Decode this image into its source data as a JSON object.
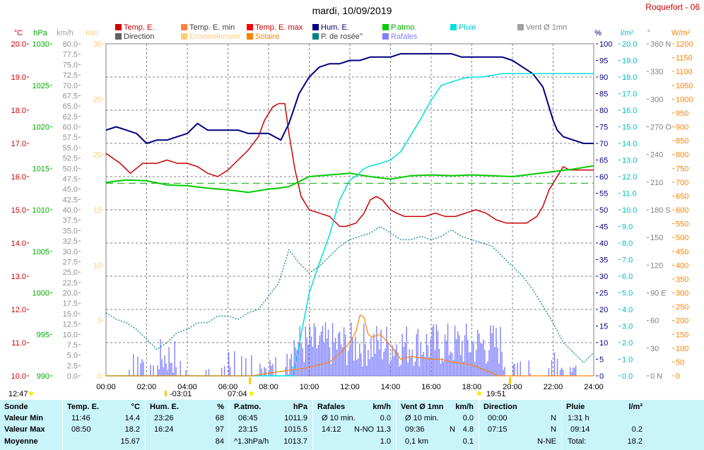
{
  "title": "mardi, 10/09/2019",
  "station": "Roquefort - 06",
  "colors": {
    "temp": "#cc0000",
    "temp_min": "#ff8040",
    "temp_max": "#ff0000",
    "hum": "#000080",
    "patmo": "#00cc00",
    "pluie": "#00cccc",
    "vent": "#a0a0a0",
    "direction": "#606060",
    "ensoleillement": "#ffcc80",
    "solaire": "#ff8000",
    "rosee": "#008080",
    "rafales": "#8080ff",
    "bg_stats": "#c8f4fa"
  },
  "legend": [
    {
      "label": "Temp. E.",
      "color": "#cc0000"
    },
    {
      "label": "Temp. E. min",
      "color": "#ff8040"
    },
    {
      "label": "Temp. E. max",
      "color": "#ff0000"
    },
    {
      "label": "Hum. E.",
      "color": "#000080"
    },
    {
      "label": "P.atmo.",
      "color": "#00cc00"
    },
    {
      "label": "Pluie",
      "color": "#00e0e0"
    },
    {
      "label": "Vent Ø 1mn",
      "color": "#a0a0a0"
    },
    {
      "label": "Direction",
      "color": "#606060"
    },
    {
      "label": "Ensoleillement",
      "color": "#ffcc80"
    },
    {
      "label": "Solaire",
      "color": "#ff8000"
    },
    {
      "label": "P. de rosée°",
      "color": "#008080"
    },
    {
      "label": "Rafales",
      "color": "#8080ff"
    }
  ],
  "axis_units": {
    "temp": "°C",
    "hpa": "hPa",
    "kmh": "km/h",
    "min": "min",
    "pct": "%",
    "lm2": "l/m²",
    "deg": "°",
    "wm2": "W/m²"
  },
  "axes": {
    "temp": [
      "20.0",
      "19.0",
      "18.0",
      "17.0",
      "16.0",
      "15.0",
      "14.0",
      "13.0",
      "12.0",
      "11.0",
      "10.0"
    ],
    "hpa": [
      "1030",
      "1025",
      "1020",
      "1015",
      "1010",
      "1005",
      "1000",
      "995",
      "990"
    ],
    "kmh": [
      "80.0",
      "77.5",
      "75.0",
      "72.5",
      "70.0",
      "67.5",
      "65.0",
      "62.5",
      "60.0",
      "57.5",
      "55.0",
      "52.5",
      "50.0",
      "47.5",
      "45.0",
      "42.5",
      "40.0",
      "37.5",
      "35.0",
      "32.5",
      "30.0",
      "27.5",
      "25.0",
      "22.5",
      "20.0",
      "17.5",
      "15.0",
      "12.5",
      "10.0",
      "7.5",
      "5.0",
      "2.5",
      "0.0"
    ],
    "min": [
      "30",
      "25",
      "20",
      "15",
      "10",
      "5",
      "0"
    ],
    "pct": [
      "100",
      "95",
      "90",
      "85",
      "80",
      "75",
      "70",
      "65",
      "60",
      "55",
      "50",
      "45",
      "40",
      "35",
      "30",
      "25",
      "20",
      "15",
      "10",
      "5",
      "0"
    ],
    "lm2": [
      "20.0",
      "19.0",
      "18.0",
      "17.0",
      "16.0",
      "15.0",
      "14.0",
      "13.0",
      "12.0",
      "11.0",
      "10.0",
      "9.0",
      "8.0",
      "7.0",
      "6.0",
      "5.0",
      "4.0",
      "3.0",
      "2.0",
      "1.0",
      "0.0"
    ],
    "deg": [
      "360 N",
      "330",
      "300",
      "270 O",
      "240",
      "210",
      "180 S",
      "150",
      "120",
      "90  E",
      "60",
      "30",
      "0   N"
    ],
    "wm2": [
      "1200",
      "1150",
      "1100",
      "1050",
      "1000",
      "950",
      "900",
      "850",
      "800",
      "750",
      "700",
      "650",
      "600",
      "550",
      "500",
      "450",
      "400",
      "350",
      "300",
      "250",
      "200",
      "150",
      "100",
      "50",
      "0"
    ],
    "time": [
      "00:00",
      "02:00",
      "04:00",
      "06:00",
      "08:00",
      "10:00",
      "12:00",
      "14:00",
      "16:00",
      "18:00",
      "20:00",
      "22:00",
      "24:00"
    ]
  },
  "sun_markers": {
    "sunrise_prev": "12:47",
    "noon": "-03:01",
    "sunrise": "07:04",
    "sunset": "19:51"
  },
  "chart_data": {
    "type": "line",
    "title": "mardi, 10/09/2019",
    "x_range_hours": [
      0,
      24
    ],
    "temp_ylim": [
      10,
      20
    ],
    "hpa_ylim": [
      990,
      1030
    ],
    "pct_ylim": [
      0,
      100
    ],
    "rain_ylim": [
      0,
      20
    ],
    "wm2_ylim": [
      0,
      1200
    ],
    "series": [
      {
        "name": "Temp. E.",
        "axis": "temp",
        "x": [
          0,
          0.7,
          1.2,
          1.8,
          2.5,
          3,
          3.5,
          4,
          4.5,
          5,
          5.5,
          6,
          6.5,
          7,
          7.5,
          7.8,
          8.2,
          8.5,
          8.8,
          9.0,
          9.3,
          9.6,
          10,
          10.5,
          11,
          11.5,
          11.8,
          12.3,
          12.7,
          13,
          13.3,
          13.6,
          14,
          14.3,
          14.7,
          15.2,
          15.7,
          16.2,
          16.7,
          17.2,
          17.7,
          18.2,
          18.7,
          19.2,
          19.7,
          20.2,
          20.7,
          21.2,
          21.5,
          21.8,
          22.2,
          22.5,
          22.8,
          23.2,
          23.6,
          24
        ],
        "y": [
          16.7,
          16.4,
          16.1,
          16.4,
          16.4,
          16.5,
          16.4,
          16.4,
          16.3,
          16.1,
          16.0,
          16.2,
          16.5,
          16.8,
          17.2,
          17.7,
          18.1,
          18.2,
          18.2,
          17.3,
          16.2,
          15.4,
          15.0,
          14.9,
          14.8,
          14.5,
          14.5,
          14.6,
          14.9,
          15.3,
          15.4,
          15.3,
          15.0,
          14.9,
          14.8,
          14.8,
          14.8,
          14.9,
          14.8,
          14.8,
          14.9,
          15.0,
          14.9,
          14.7,
          14.6,
          14.6,
          14.6,
          14.8,
          15.1,
          15.6,
          16.0,
          16.3,
          16.2,
          16.2,
          16.2,
          16.2
        ]
      },
      {
        "name": "Hum. E.",
        "axis": "pct",
        "x": [
          0,
          0.5,
          1,
          1.5,
          2,
          2.5,
          3,
          3.5,
          4,
          4.5,
          5,
          5.5,
          6,
          6.5,
          7,
          7.5,
          8,
          8.3,
          8.6,
          9,
          9.5,
          10,
          10.5,
          11,
          11.5,
          12,
          12.5,
          13,
          13.5,
          14,
          14.5,
          15,
          15.5,
          16,
          16.5,
          17,
          17.5,
          18,
          18.5,
          19,
          19.5,
          20,
          20.5,
          21,
          21.5,
          22,
          22.2,
          22.5,
          23,
          23.5,
          24
        ],
        "y": [
          74,
          75,
          74,
          73,
          70,
          71,
          71,
          72,
          73,
          76,
          74,
          74,
          74,
          74,
          73,
          73,
          73,
          72,
          71,
          76,
          85,
          90,
          93,
          94,
          94,
          95,
          95,
          96,
          96,
          96,
          97,
          97,
          97,
          97,
          97,
          97,
          96,
          96,
          96,
          96,
          96,
          95,
          93,
          91,
          87,
          77,
          74,
          72,
          71,
          70,
          70
        ]
      },
      {
        "name": "P.atmo.",
        "axis": "hpa",
        "x": [
          0,
          1,
          2,
          3,
          4,
          5,
          6,
          7,
          7.5,
          8,
          8.5,
          9,
          9.5,
          10,
          11,
          12,
          12.5,
          13,
          14,
          15,
          16,
          17,
          18,
          19,
          20,
          21,
          22,
          23,
          24
        ],
        "y": [
          1013.3,
          1013.6,
          1013.5,
          1013.0,
          1012.9,
          1012.6,
          1012.4,
          1012.1,
          1012.3,
          1012.5,
          1012.6,
          1012.8,
          1013.4,
          1014.0,
          1014.2,
          1014.4,
          1014.2,
          1014.0,
          1013.7,
          1014.1,
          1014.2,
          1014.1,
          1014.2,
          1014.1,
          1014.0,
          1014.3,
          1014.6,
          1014.9,
          1015.3
        ]
      },
      {
        "name": "Pluie",
        "axis": "rain",
        "x": [
          0,
          9.2,
          9.6,
          10,
          10.5,
          11,
          11.5,
          12,
          12.4,
          12.6,
          12.9,
          13.5,
          14,
          14.5,
          15,
          15.5,
          16,
          16.5,
          17,
          17.5,
          18,
          18.5,
          19,
          19.5,
          20,
          21,
          22,
          23,
          24
        ],
        "y": [
          0,
          0,
          2.5,
          5,
          6.8,
          8.5,
          10.6,
          11.8,
          12.1,
          12.4,
          12.6,
          12.8,
          13.0,
          13.5,
          14.5,
          15.5,
          16.6,
          17.5,
          17.7,
          17.9,
          18.0,
          18.0,
          18.1,
          18.2,
          18.2,
          18.2,
          18.2,
          18.2,
          18.2
        ]
      },
      {
        "name": "P. de rosée°",
        "axis": "temp",
        "x": [
          0,
          0.5,
          1,
          1.5,
          2,
          2.5,
          3,
          3.5,
          4,
          4.5,
          5,
          5.5,
          6,
          6.5,
          7,
          7.5,
          8,
          8.5,
          9,
          9.5,
          10,
          10.5,
          11,
          11.5,
          12,
          12.5,
          13,
          13.5,
          14,
          14.5,
          15,
          15.5,
          16,
          16.5,
          17,
          17.5,
          18,
          18.5,
          19,
          19.5,
          20,
          20.5,
          21,
          21.5,
          22,
          22.5,
          23,
          23.5,
          24
        ],
        "y": [
          11.9,
          11.7,
          11.6,
          11.4,
          11.1,
          10.8,
          11.0,
          11.3,
          11.4,
          11.6,
          11.6,
          11.8,
          11.8,
          11.7,
          11.9,
          12.0,
          12.4,
          12.8,
          13.8,
          13.4,
          13.1,
          13.3,
          13.6,
          13.9,
          14.1,
          14.2,
          14.3,
          14.5,
          14.3,
          14.1,
          14.1,
          14.2,
          14.1,
          14.2,
          14.4,
          14.2,
          14.1,
          14.0,
          13.9,
          13.6,
          13.3,
          13.0,
          12.6,
          12.1,
          11.6,
          11.0,
          10.7,
          10.4,
          10.7
        ]
      },
      {
        "name": "Solaire",
        "axis": "wm2",
        "x": [
          0,
          7.2,
          8,
          9,
          9.5,
          10,
          10.5,
          11,
          11.5,
          12,
          12.3,
          12.5,
          12.7,
          12.9,
          13.1,
          13.5,
          14,
          14.5,
          15,
          15.5,
          16,
          16.5,
          17,
          17.5,
          18,
          18.5,
          19,
          19.3,
          24
        ],
        "y": [
          0,
          0,
          10,
          20,
          25,
          30,
          40,
          50,
          80,
          120,
          160,
          220,
          210,
          150,
          140,
          150,
          110,
          60,
          70,
          65,
          60,
          60,
          50,
          45,
          40,
          25,
          10,
          0,
          0
        ]
      },
      {
        "name": "Temp. E. max (jour)",
        "axis": "temp",
        "x": [
          0,
          24
        ],
        "y": [
          15.8,
          15.8
        ]
      }
    ],
    "stats": {
      "sonde": {
        "header": "Sonde",
        "rows": [
          "Valeur Min",
          "Valeur Max",
          "Moyenne"
        ]
      },
      "temp": {
        "header": "Temp. E.",
        "unit": "°C",
        "min_time": "11:46",
        "min": "14.4",
        "max_time": "08:50",
        "max": "18.2",
        "avg": "15.67"
      },
      "hum": {
        "header": "Hum. E.",
        "unit": "%",
        "min_time": "23:26",
        "min": "68",
        "max_time": "16:24",
        "max": "97",
        "avg": "84"
      },
      "patmo": {
        "header": "P.atmo.",
        "unit": "hPa",
        "min_time": "06:45",
        "min": "1011.9",
        "max_time": "23:15",
        "max": "1015.5",
        "avg_note": "^1.3hPa/h",
        "avg": "1013.7"
      },
      "rafales": {
        "header": "Rafales",
        "unit": "km/h",
        "min_label": "Ø 10 min.",
        "min": "0.0",
        "max_time": "14:12",
        "max_dir": "N-NO",
        "max": "11.3",
        "avg": "1.0"
      },
      "vent": {
        "header": "Vent Ø 1mn",
        "unit": "km/h",
        "min_label": "Ø 10 min.",
        "min": "0.0",
        "max_time": "09:36",
        "max_dir": "N",
        "max": "4.8",
        "avg_label": "0,1 km",
        "avg": "0.1"
      },
      "direction": {
        "header": "Direction",
        "min_time": "00:00",
        "min": "N",
        "max_time": "07:15",
        "max": "N",
        "avg": "N-NE"
      },
      "pluie": {
        "header": "Pluie",
        "unit": "l/m²",
        "min_label": "1:31 h",
        "max_time": "09:14",
        "max": "0.2",
        "avg_label": "Total:",
        "avg": "18.2"
      }
    }
  }
}
